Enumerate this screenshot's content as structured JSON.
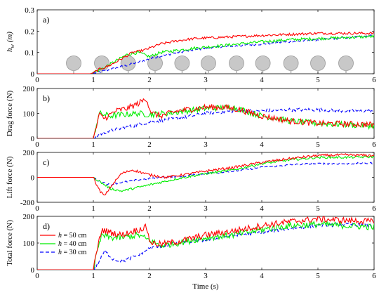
{
  "chart_data": [
    {
      "type": "line",
      "panel_label": "a)",
      "ylabel": "h_w (m)",
      "ylabel_main": "h",
      "ylabel_sub": "w",
      "ylabel_unit": "(m)",
      "xlim": [
        0,
        6
      ],
      "ylim": [
        0,
        0.3
      ],
      "xticks": [
        "0",
        "1",
        "2",
        "3",
        "4",
        "5",
        "6"
      ],
      "yticks": [
        "0",
        "0.1",
        "0.2",
        "0.3"
      ],
      "ytick_values": [
        0,
        0.1,
        0.2,
        0.3
      ],
      "trees": [
        0.65,
        1.15,
        1.62,
        2.1,
        2.58,
        3.05,
        3.55,
        4.02,
        4.52,
        5.0,
        5.5
      ],
      "series": [
        {
          "color": "#ff0000",
          "dash": "solid",
          "noise": 0.006,
          "x": [
            0,
            0.95,
            1.0,
            1.1,
            1.3,
            1.5,
            1.7,
            1.9,
            2.0,
            2.2,
            2.5,
            2.8,
            3.2,
            3.6,
            4.0,
            4.5,
            5.0,
            5.5,
            6.0
          ],
          "y": [
            0,
            0,
            0.005,
            0.02,
            0.04,
            0.07,
            0.1,
            0.11,
            0.12,
            0.14,
            0.155,
            0.165,
            0.17,
            0.175,
            0.18,
            0.185,
            0.19,
            0.19,
            0.19
          ]
        },
        {
          "color": "#00ee00",
          "dash": "solid",
          "noise": 0.007,
          "x": [
            0,
            0.95,
            1.0,
            1.2,
            1.4,
            1.6,
            1.8,
            2.0,
            2.2,
            2.5,
            2.8,
            3.2,
            3.6,
            4.0,
            4.5,
            5.0,
            5.5,
            6.0
          ],
          "y": [
            0,
            0,
            0.005,
            0.03,
            0.06,
            0.09,
            0.1,
            0.08,
            0.1,
            0.11,
            0.12,
            0.13,
            0.14,
            0.15,
            0.16,
            0.165,
            0.17,
            0.175
          ]
        },
        {
          "color": "#0000ff",
          "dash": "dashed",
          "noise": 0.005,
          "x": [
            0,
            0.95,
            1.0,
            1.3,
            1.6,
            2.0,
            2.5,
            3.0,
            3.5,
            4.0,
            4.5,
            5.0,
            5.5,
            6.0
          ],
          "y": [
            0,
            0,
            0.002,
            0.02,
            0.04,
            0.07,
            0.1,
            0.12,
            0.13,
            0.14,
            0.15,
            0.16,
            0.17,
            0.18
          ]
        }
      ]
    },
    {
      "type": "line",
      "panel_label": "b)",
      "ylabel": "Drag force (N)",
      "xlim": [
        0,
        6
      ],
      "ylim": [
        0,
        200
      ],
      "xticks": [
        "0",
        "1",
        "2",
        "3",
        "4",
        "5",
        "6"
      ],
      "yticks": [
        "0",
        "100",
        "200"
      ],
      "ytick_values": [
        0,
        100,
        200
      ],
      "series": [
        {
          "color": "#ff0000",
          "dash": "solid",
          "noise": 12,
          "x": [
            0,
            1.0,
            1.05,
            1.1,
            1.2,
            1.4,
            1.6,
            1.8,
            1.95,
            2.0,
            2.05,
            2.2,
            2.5,
            3.0,
            3.3,
            3.6,
            4.0,
            4.5,
            5.0,
            5.5,
            6.0
          ],
          "y": [
            0,
            0,
            40,
            95,
            80,
            110,
            120,
            140,
            160,
            120,
            100,
            90,
            110,
            125,
            125,
            115,
            90,
            70,
            60,
            58,
            55
          ]
        },
        {
          "color": "#00ee00",
          "dash": "solid",
          "noise": 12,
          "x": [
            0,
            1.0,
            1.05,
            1.1,
            1.3,
            1.5,
            1.8,
            2.0,
            2.5,
            3.0,
            3.5,
            4.0,
            4.5,
            5.0,
            5.5,
            6.0
          ],
          "y": [
            0,
            0,
            50,
            100,
            90,
            95,
            100,
            95,
            105,
            120,
            125,
            90,
            70,
            60,
            55,
            50
          ]
        },
        {
          "color": "#0000ff",
          "dash": "dashed",
          "noise": 7,
          "x": [
            0,
            1.0,
            1.1,
            1.3,
            1.6,
            2.0,
            2.5,
            3.0,
            3.5,
            4.0,
            4.5,
            5.0,
            5.5,
            6.0
          ],
          "y": [
            0,
            0,
            15,
            30,
            45,
            65,
            80,
            100,
            110,
            110,
            115,
            115,
            110,
            110
          ]
        }
      ]
    },
    {
      "type": "line",
      "panel_label": "c)",
      "ylabel": "Lift force (N)",
      "xlim": [
        0,
        6
      ],
      "ylim": [
        -200,
        200
      ],
      "xticks": [
        "0",
        "1",
        "2",
        "3",
        "4",
        "5",
        "6"
      ],
      "yticks": [
        "-200",
        "0",
        "200"
      ],
      "ytick_values": [
        -200,
        0,
        200
      ],
      "series": [
        {
          "color": "#ff0000",
          "dash": "solid",
          "noise": 10,
          "x": [
            0,
            1.0,
            1.1,
            1.2,
            1.3,
            1.5,
            1.7,
            2.0,
            2.3,
            2.6,
            3.0,
            3.5,
            4.0,
            4.5,
            5.0,
            5.5,
            6.0
          ],
          "y": [
            0,
            0,
            -100,
            -150,
            -80,
            30,
            60,
            20,
            0,
            20,
            50,
            80,
            120,
            150,
            175,
            180,
            175
          ]
        },
        {
          "color": "#00ee00",
          "dash": "solid",
          "noise": 9,
          "x": [
            0,
            1.0,
            1.1,
            1.3,
            1.5,
            1.8,
            2.2,
            2.5,
            3.0,
            3.5,
            4.0,
            4.5,
            5.0,
            5.5,
            6.0
          ],
          "y": [
            0,
            0,
            -30,
            -90,
            -110,
            -80,
            -40,
            -10,
            30,
            60,
            110,
            140,
            160,
            160,
            165
          ]
        },
        {
          "color": "#0000ff",
          "dash": "dashed",
          "noise": 7,
          "x": [
            0,
            1.0,
            1.1,
            1.3,
            1.5,
            1.8,
            2.2,
            2.6,
            3.0,
            3.5,
            4.0,
            4.5,
            5.0,
            5.5,
            6.0
          ],
          "y": [
            0,
            0,
            -30,
            -60,
            -40,
            -20,
            0,
            10,
            30,
            50,
            80,
            100,
            110,
            110,
            115
          ]
        }
      ]
    },
    {
      "type": "line",
      "panel_label": "d)",
      "ylabel": "Total force (N)",
      "xlim": [
        0,
        6
      ],
      "ylim": [
        0,
        200
      ],
      "xticks": [
        "0",
        "1",
        "2",
        "3",
        "4",
        "5",
        "6"
      ],
      "yticks": [
        "0",
        "100",
        "200"
      ],
      "ytick_values": [
        0,
        100,
        200
      ],
      "xlabel": "Time (s)",
      "legend": [
        {
          "var": "h",
          "label": " = 50 cm",
          "color": "#ff0000",
          "dash": "solid"
        },
        {
          "var": "h",
          "label": " = 40 cm",
          "color": "#00ee00",
          "dash": "solid"
        },
        {
          "var": "h",
          "label": " = 30 cm",
          "color": "#0000ff",
          "dash": "dashed"
        }
      ],
      "legend_position": "left",
      "series": [
        {
          "color": "#ff0000",
          "dash": "solid",
          "noise": 12,
          "x": [
            0,
            1.0,
            1.05,
            1.15,
            1.3,
            1.5,
            1.8,
            1.95,
            2.0,
            2.05,
            2.2,
            2.5,
            3.0,
            3.5,
            4.0,
            4.5,
            5.0,
            5.5,
            6.0
          ],
          "y": [
            0,
            0,
            60,
            150,
            140,
            130,
            150,
            160,
            110,
            100,
            95,
            105,
            130,
            145,
            165,
            180,
            190,
            185,
            180
          ]
        },
        {
          "color": "#00ee00",
          "dash": "solid",
          "noise": 12,
          "x": [
            0,
            1.0,
            1.05,
            1.15,
            1.3,
            1.5,
            1.8,
            2.0,
            2.2,
            2.5,
            3.0,
            3.5,
            4.0,
            4.5,
            5.0,
            5.5,
            6.0
          ],
          "y": [
            0,
            0,
            50,
            130,
            120,
            120,
            130,
            110,
            90,
            100,
            120,
            130,
            150,
            165,
            170,
            165,
            160
          ]
        },
        {
          "color": "#0000ff",
          "dash": "dashed",
          "noise": 6,
          "x": [
            0,
            1.0,
            1.1,
            1.2,
            1.35,
            1.5,
            1.8,
            2.0,
            2.5,
            3.0,
            3.5,
            4.0,
            4.5,
            5.0,
            5.5,
            6.0
          ],
          "y": [
            0,
            0,
            30,
            70,
            40,
            30,
            55,
            80,
            100,
            110,
            130,
            140,
            155,
            165,
            170,
            165
          ]
        }
      ]
    }
  ]
}
